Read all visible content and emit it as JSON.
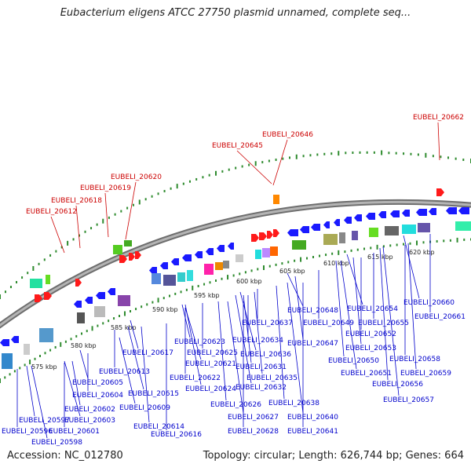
{
  "title": "Eubacterium eligens ATCC 27750 plasmid unnamed, complete seq...",
  "footer": {
    "accession": "Accession: NC_012780",
    "summary": "Topology: circular; Length: 626,744 bp; Genes: 664"
  },
  "colors": {
    "backbone": "#8a8a8a",
    "tick": "#2e8b2e",
    "forward_label": "#cc0000",
    "reverse_label": "#0000cc",
    "forward_gene": "#ff1a1a",
    "reverse_gene": "#1a1aff"
  },
  "ticks": [
    "575 kbp",
    "580 kbp",
    "585 kbp",
    "590 kbp",
    "595 kbp",
    "600 kbp",
    "605 kbp",
    "610 kbp",
    "615 kbp",
    "620 kbp"
  ],
  "forward_genes": [
    "EUBELI_20612",
    "EUBELI_20618",
    "EUBELI_20619",
    "EUBELI_20620",
    "EUBELI_20645",
    "EUBELI_20646",
    "EUBELI_20662"
  ],
  "reverse_genes": [
    "EUBELI_20596",
    "EUBELI_20597",
    "EUBELI_20598",
    "EUBELI_20601",
    "EUBELI_20602",
    "EUBELI_20603",
    "EUBELI_20604",
    "EUBELI_20605",
    "EUBELI_20609",
    "EUBELI_20613",
    "EUBELI_20614",
    "EUBELI_20615",
    "EUBELI_20616",
    "EUBELI_20617",
    "EUBELI_20621",
    "EUBELI_20622",
    "EUBELI_20623",
    "EUBELI_20624",
    "EUBELI_20625",
    "EUBELI_20626",
    "EUBELI_20627",
    "EUBELI_20628",
    "EUBELI_20631",
    "EUBELI_20632",
    "EUBELI_20634",
    "EUBELI_20635",
    "EUBELI_20636",
    "EUBELI_20637",
    "EUBELI_20638",
    "EUBELI_20640",
    "EUBELI_20641",
    "EUBELI_20647",
    "EUBELI_20648",
    "EUBELI_20649",
    "EUBELI_20650",
    "EUBELI_20651",
    "EUBELI_20652",
    "EUBELI_20653",
    "EUBELI_20654",
    "EUBELI_20655",
    "EUBELI_20656",
    "EUBELI_20657",
    "EUBELI_20658",
    "EUBELI_20659",
    "EUBELI_20660",
    "EUBELI_20661"
  ]
}
